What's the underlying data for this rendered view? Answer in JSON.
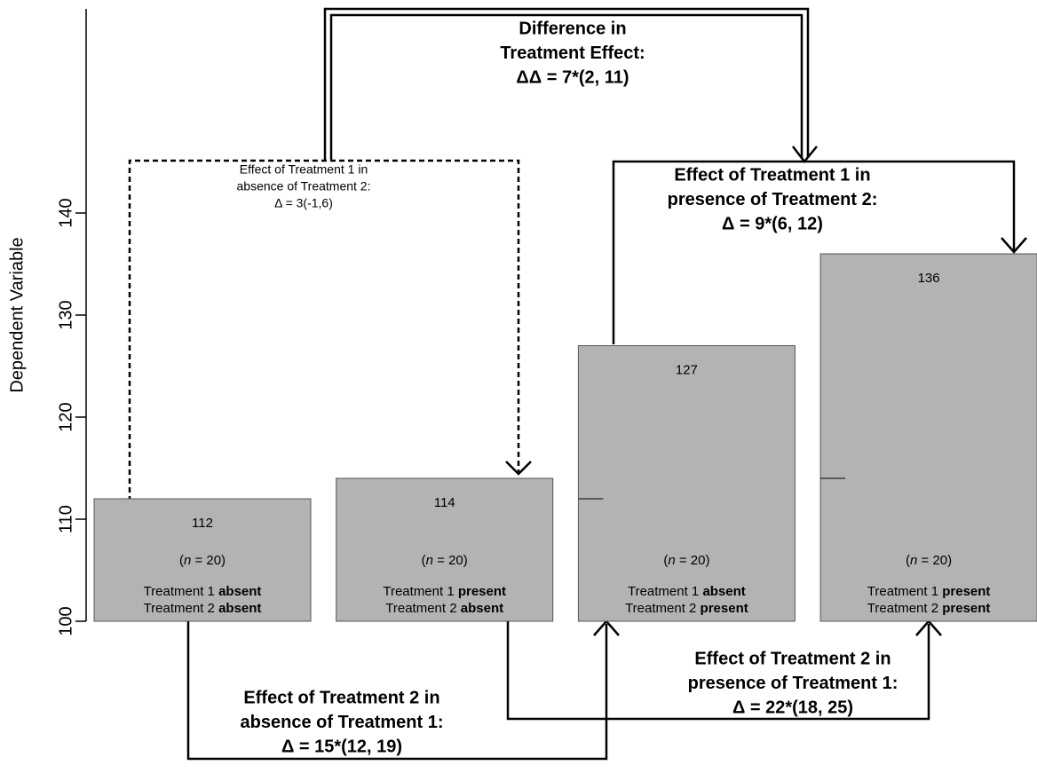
{
  "chart_data": {
    "type": "bar",
    "y_label": "Dependent Variable",
    "ylim": [
      100,
      160
    ],
    "yticks": [
      100,
      110,
      120,
      130,
      140
    ],
    "color": "#b3b3b3",
    "values": [
      112,
      114,
      127,
      136
    ],
    "bar_labels": [
      {
        "n": [
          "(",
          "n",
          " = 20)"
        ],
        "lines": [
          [
            "Treatment 1 ",
            "absent"
          ],
          [
            "Treatment 2 ",
            "absent"
          ]
        ]
      },
      {
        "n": [
          "(",
          "n",
          " = 20)"
        ],
        "lines": [
          [
            "Treatment 1 ",
            "present"
          ],
          [
            "Treatment 2 ",
            "absent"
          ]
        ]
      },
      {
        "n": [
          "(",
          "n",
          " = 20)"
        ],
        "lines": [
          [
            "Treatment 1 ",
            "absent"
          ],
          [
            "Treatment 2 ",
            "present"
          ]
        ]
      },
      {
        "n": [
          "(",
          "n",
          " = 20)"
        ],
        "lines": [
          [
            "Treatment 1 ",
            "present"
          ],
          [
            "Treatment 2 ",
            "present"
          ]
        ]
      }
    ],
    "annotations": [
      {
        "style": "bold",
        "lines": [
          "Difference in",
          "Treatment Effect:",
          "ΔΔ = 7*(2, 11)"
        ]
      },
      {
        "style": "normal",
        "lines": [
          "Effect of Treatment 1 in",
          "absence of Treatment 2:",
          "Δ = 3(-1,6)"
        ]
      },
      {
        "style": "bold",
        "lines": [
          "Effect of Treatment 1 in",
          "presence of Treatment 2:",
          "Δ = 9*(6, 12)"
        ]
      },
      {
        "style": "bold",
        "lines": [
          "Effect of Treatment 2 in",
          "absence of Treatment 1:",
          "Δ = 15*(12, 19)"
        ]
      },
      {
        "style": "bold",
        "lines": [
          "Effect of Treatment 2 in",
          "presence of Treatment 1:",
          "Δ = 22*(18, 25)"
        ]
      }
    ]
  }
}
